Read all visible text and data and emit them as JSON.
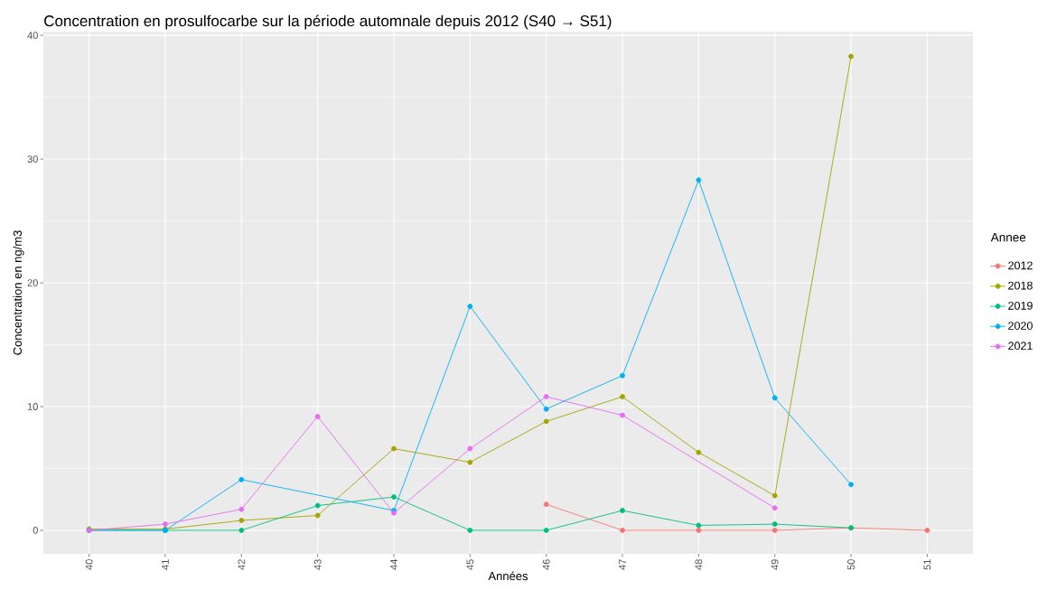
{
  "chart_data": {
    "type": "line",
    "title": "Concentration en prosulfocarbe sur la période automnale depuis 2012 (S40 → S51)",
    "xlabel": "Années",
    "ylabel": "Concentration en ng/m3",
    "legend_title": "Annee",
    "categories": [
      "40",
      "41",
      "42",
      "43",
      "44",
      "45",
      "46",
      "47",
      "48",
      "49",
      "50",
      "51"
    ],
    "ylim": [
      -1.9,
      40.3
    ],
    "yticks": [
      0,
      10,
      20,
      30,
      40
    ],
    "grid": true,
    "legend": "right",
    "marker": "circle",
    "line_style": "solid",
    "series": [
      {
        "name": "2012",
        "color": "#f8766d",
        "values": [
          null,
          null,
          null,
          null,
          null,
          null,
          2.1,
          0,
          0,
          0,
          0.2,
          0
        ]
      },
      {
        "name": "2018",
        "color": "#a3a500",
        "values": [
          0.1,
          0.1,
          0.8,
          1.2,
          6.6,
          5.5,
          8.8,
          10.8,
          6.3,
          2.8,
          38.3,
          null
        ]
      },
      {
        "name": "2019",
        "color": "#00bf7d",
        "values": [
          0,
          0,
          0,
          2.0,
          2.7,
          0,
          0,
          1.6,
          0.4,
          0.5,
          0.2,
          null
        ]
      },
      {
        "name": "2020",
        "color": "#00b0f6",
        "values": [
          0,
          0,
          4.1,
          null,
          1.6,
          18.1,
          9.8,
          12.5,
          28.3,
          10.7,
          3.7,
          null
        ]
      },
      {
        "name": "2021",
        "color": "#e76bf3",
        "values": [
          0,
          0.5,
          1.7,
          9.2,
          1.4,
          6.6,
          10.8,
          9.3,
          null,
          1.8,
          null,
          null
        ]
      }
    ]
  }
}
